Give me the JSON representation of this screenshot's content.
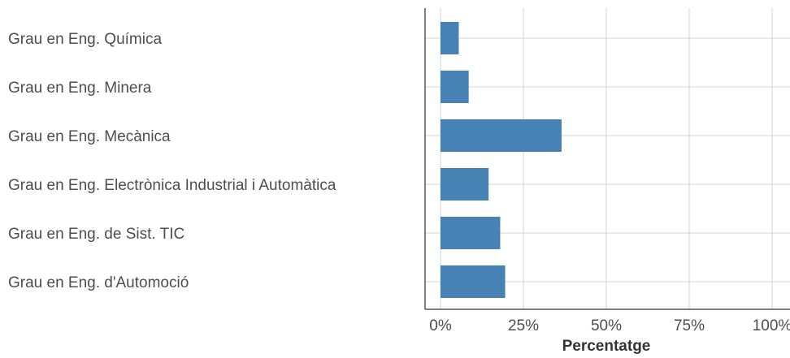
{
  "chart_data": {
    "type": "bar",
    "orientation": "horizontal",
    "categories": [
      "Grau en Eng. Química",
      "Grau en Eng. Minera",
      "Grau en Eng. Mecànica",
      "Grau en Eng. Electrònica Industrial i Automàtica",
      "Grau en Eng. de Sist. TIC",
      "Grau en Eng. d'Automoció"
    ],
    "values": [
      5.5,
      8.5,
      36.5,
      14.5,
      18,
      19.5
    ],
    "xlabel": "Percentatge",
    "ylabel": "",
    "xlim": [
      0,
      100
    ],
    "xticks": [
      0,
      25,
      50,
      75,
      100
    ],
    "xtick_labels": [
      "0%",
      "25%",
      "50%",
      "75%",
      "100%"
    ],
    "grid": true,
    "bar_color": "#4682b4",
    "grid_color": "#d3d3d3"
  }
}
